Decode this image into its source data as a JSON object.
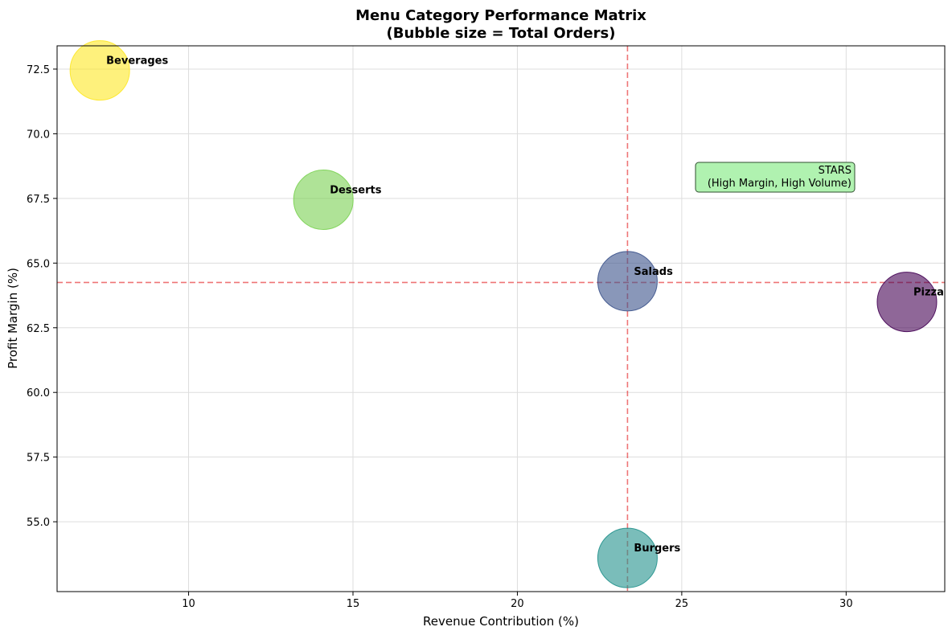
{
  "chart_data": {
    "type": "scatter",
    "title": "Menu Category Performance Matrix",
    "subtitle": "(Bubble size = Total Orders)",
    "xlabel": "Revenue Contribution (%)",
    "ylabel": "Profit Margin (%)",
    "xlim": [
      6.0,
      33.0
    ],
    "ylim": [
      52.3,
      73.4
    ],
    "xticks": [
      10,
      15,
      20,
      25,
      30
    ],
    "yticks": [
      55.0,
      57.5,
      60.0,
      62.5,
      65.0,
      67.5,
      70.0,
      72.5
    ],
    "grid": true,
    "reference_lines": {
      "x": 23.35,
      "y": 64.25,
      "color": "#e41a1c"
    },
    "annotation": {
      "line1": "STARS",
      "line2": "(High Margin, High Volume)",
      "x": 30.25,
      "y": 68.3,
      "fill": "#b0f2b0"
    },
    "points": [
      {
        "label": "Beverages",
        "x": 7.3,
        "y": 72.45,
        "color": "#fde725"
      },
      {
        "label": "Desserts",
        "x": 14.1,
        "y": 67.45,
        "color": "#7ad151"
      },
      {
        "label": "Salads",
        "x": 23.35,
        "y": 64.3,
        "color": "#3b528b"
      },
      {
        "label": "Pizza",
        "x": 31.85,
        "y": 63.5,
        "color": "#440154"
      },
      {
        "label": "Burgers",
        "x": 23.35,
        "y": 53.6,
        "color": "#21918c"
      }
    ]
  }
}
